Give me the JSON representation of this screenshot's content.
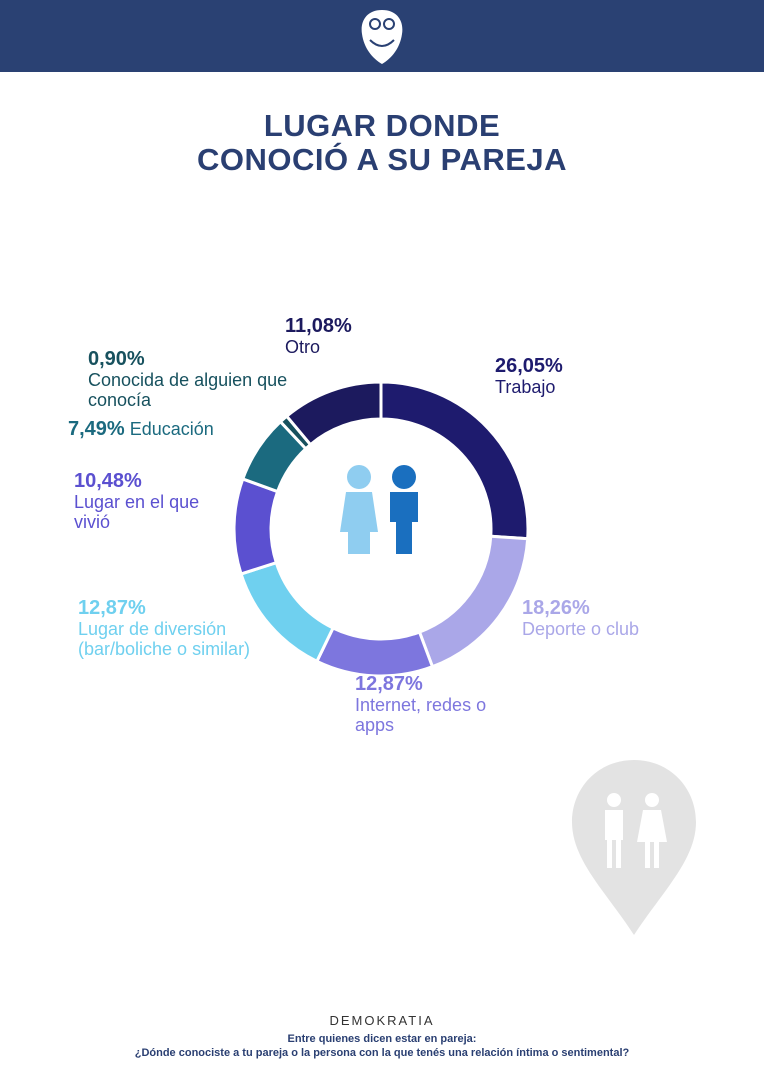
{
  "chart_data": {
    "type": "donut",
    "title": [
      "LUGAR DONDE",
      "CONOCIÓ A SU PAREJA"
    ],
    "categories": [
      "Trabajo",
      "Deporte o club",
      "Internet, redes o apps",
      "Lugar de diversión (bar/boliche o similar)",
      "Lugar en el que vivió",
      "Educación",
      "Conocida de alguien que conocía",
      "Otro"
    ],
    "values": [
      26.05,
      18.26,
      12.87,
      12.87,
      10.48,
      7.49,
      0.9,
      11.08
    ],
    "value_labels": [
      "26,05%",
      "18,26%",
      "12,87%",
      "12,87%",
      "10,48%",
      "7,49%",
      "0,90%",
      "11,08%"
    ],
    "colors": [
      "#1e1b6e",
      "#aaa7e8",
      "#7d76de",
      "#6fd0ef",
      "#5b50d0",
      "#1b6a7f",
      "#17515e",
      "#1c1a5e"
    ],
    "brand": "DEMOKRATIA",
    "note": "Entre quienes dicen estar en pareja:",
    "question": "¿Dónde conociste a tu pareja o la persona con la que tenés una relación íntima o sentimental?"
  }
}
